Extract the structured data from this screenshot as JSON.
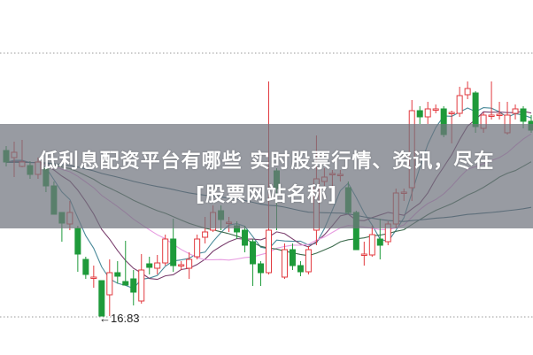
{
  "title": {
    "line1": "低利息配资平台有哪些 实时股票行情、资讯，尽在",
    "line2": "[股票网站名称]"
  },
  "chart_data": {
    "type": "candlestick",
    "low_marker": {
      "label": "←16.83",
      "value": 16.83
    },
    "grid": "dotted horizontal",
    "up_color": "#e23a3f",
    "down_color": "#1e9a3a",
    "moving_averages": [
      {
        "period": 5,
        "color": "#4a8a9a"
      },
      {
        "period": 10,
        "color": "#7a3f6e"
      },
      {
        "period": 20,
        "color": "#e79be0"
      },
      {
        "period": 30,
        "color": "#3d6b4d"
      },
      {
        "period": 60,
        "color": "#2f5f6f"
      }
    ],
    "ohlc": [
      [
        20.57,
        20.31,
        20.67,
        20.21
      ],
      [
        20.41,
        20.53,
        20.77,
        19.97
      ],
      [
        20.21,
        20.31,
        20.81,
        20.19
      ],
      [
        20.23,
        20.03,
        20.33,
        19.93
      ],
      [
        20.03,
        20.31,
        20.41,
        19.93
      ],
      [
        20.17,
        19.77,
        20.23,
        19.63
      ],
      [
        19.77,
        19.13,
        19.87,
        19.13
      ],
      [
        19.17,
        18.93,
        19.17,
        18.51
      ],
      [
        18.91,
        19.17,
        19.43,
        18.77
      ],
      [
        18.81,
        18.23,
        18.87,
        17.83
      ],
      [
        18.11,
        17.77,
        18.17,
        17.67
      ],
      [
        17.71,
        17.71,
        17.97,
        17.47
      ],
      [
        17.63,
        16.83,
        17.63,
        16.83
      ],
      [
        17.31,
        17.81,
        18.11,
        16.83
      ],
      [
        17.81,
        17.73,
        18.07,
        17.57
      ],
      [
        17.61,
        17.53,
        18.53,
        17.53
      ],
      [
        17.67,
        17.37,
        17.87,
        17.07
      ],
      [
        17.17,
        17.87,
        18.23,
        17.11
      ],
      [
        18.01,
        17.93,
        18.17,
        17.77
      ],
      [
        17.91,
        18.03,
        18.21,
        17.77
      ],
      [
        18.03,
        18.57,
        18.67,
        17.97
      ],
      [
        18.57,
        17.97,
        19.03,
        17.83
      ],
      [
        17.97,
        17.99,
        18.07,
        17.87
      ],
      [
        17.91,
        18.11,
        18.27,
        17.67
      ],
      [
        18.17,
        18.57,
        18.67,
        18.11
      ],
      [
        18.61,
        18.73,
        19.07,
        18.47
      ],
      [
        18.77,
        19.17,
        19.33,
        18.73
      ],
      [
        19.21,
        19.01,
        19.33,
        18.77
      ],
      [
        18.93,
        18.95,
        19.07,
        18.73
      ],
      [
        18.87,
        18.73,
        18.97,
        18.57
      ],
      [
        18.77,
        18.43,
        18.87,
        18.27
      ],
      [
        18.51,
        18.01,
        18.57,
        17.51
      ],
      [
        18.01,
        17.81,
        18.07,
        17.51
      ],
      [
        17.81,
        18.77,
        22.13,
        17.77
      ],
      [
        20.11,
        19.71,
        20.17,
        18.77
      ],
      [
        17.71,
        18.33,
        18.47,
        17.67
      ],
      [
        18.33,
        17.97,
        18.47,
        17.87
      ],
      [
        17.97,
        17.83,
        18.07,
        17.73
      ],
      [
        17.83,
        18.33,
        18.41,
        17.77
      ],
      [
        18.77,
        19.93,
        20.91,
        18.43
      ],
      [
        19.87,
        19.97,
        20.17,
        19.77
      ],
      [
        20.03,
        20.05,
        20.13,
        19.71
      ],
      [
        20.03,
        20.03,
        20.13,
        19.87
      ],
      [
        19.73,
        19.17,
        19.87,
        19.13
      ],
      [
        19.17,
        18.33,
        19.21,
        18.33
      ],
      [
        18.23,
        18.23,
        18.51,
        17.97
      ],
      [
        18.21,
        18.67,
        18.87,
        18.17
      ],
      [
        18.57,
        18.43,
        19.03,
        18.11
      ],
      [
        18.51,
        18.91,
        18.97,
        18.43
      ],
      [
        18.91,
        19.61,
        19.71,
        18.81
      ],
      [
        19.63,
        19.63,
        19.71,
        19.43
      ],
      [
        19.73,
        21.47,
        21.71,
        19.43
      ],
      [
        21.47,
        21.33,
        21.57,
        21.17
      ],
      [
        21.33,
        21.51,
        21.67,
        21.17
      ],
      [
        21.49,
        21.51,
        21.61,
        21.41
      ],
      [
        21.51,
        20.93,
        21.57,
        20.87
      ],
      [
        21.41,
        21.43,
        21.47,
        20.73
      ],
      [
        21.41,
        21.81,
        22.01,
        21.33
      ],
      [
        21.83,
        21.97,
        22.13,
        21.73
      ],
      [
        21.87,
        21.11,
        21.91,
        20.97
      ],
      [
        21.07,
        21.37,
        21.43,
        20.97
      ],
      [
        21.37,
        21.37,
        22.13,
        21.27
      ],
      [
        21.37,
        21.39,
        21.67,
        21.27
      ],
      [
        20.97,
        21.37,
        21.67,
        20.93
      ],
      [
        21.41,
        21.51,
        21.61,
        21.27
      ],
      [
        21.51,
        21.23,
        21.57,
        21.07
      ],
      [
        21.23,
        21.03,
        21.37,
        20.97
      ]
    ]
  }
}
